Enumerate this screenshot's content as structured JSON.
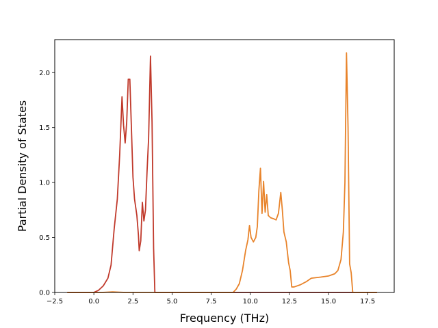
{
  "chart_data": {
    "type": "line",
    "title": "",
    "xlabel": "Frequency (THz)",
    "ylabel": "Partial Density of States",
    "xlim": [
      -2.5,
      19.2
    ],
    "ylim": [
      0,
      2.3
    ],
    "xticks": [
      -2.5,
      0.0,
      2.5,
      5.0,
      7.5,
      10.0,
      12.5,
      15.0,
      17.5
    ],
    "xtick_labels": [
      "−2.5",
      "0.0",
      "2.5",
      "5.0",
      "7.5",
      "10.0",
      "12.5",
      "15.0",
      "17.5"
    ],
    "yticks": [
      0.0,
      0.5,
      1.0,
      1.5,
      2.0
    ],
    "ytick_labels": [
      "0.0",
      "0.5",
      "1.0",
      "1.5",
      "2.0"
    ],
    "grid": false,
    "legend": "none",
    "series": [
      {
        "color": "#c0392b",
        "points": [
          [
            -1.7,
            0.0
          ],
          [
            0.0,
            0.0
          ],
          [
            0.3,
            0.02
          ],
          [
            0.6,
            0.06
          ],
          [
            0.9,
            0.13
          ],
          [
            1.1,
            0.25
          ],
          [
            1.3,
            0.58
          ],
          [
            1.5,
            0.85
          ],
          [
            1.65,
            1.25
          ],
          [
            1.8,
            1.78
          ],
          [
            1.9,
            1.52
          ],
          [
            2.0,
            1.36
          ],
          [
            2.1,
            1.55
          ],
          [
            2.2,
            1.94
          ],
          [
            2.3,
            1.94
          ],
          [
            2.4,
            1.5
          ],
          [
            2.5,
            1.05
          ],
          [
            2.6,
            0.85
          ],
          [
            2.75,
            0.7
          ],
          [
            2.85,
            0.52
          ],
          [
            2.9,
            0.38
          ],
          [
            3.0,
            0.47
          ],
          [
            3.1,
            0.82
          ],
          [
            3.2,
            0.65
          ],
          [
            3.3,
            0.75
          ],
          [
            3.4,
            1.1
          ],
          [
            3.5,
            1.4
          ],
          [
            3.62,
            2.15
          ],
          [
            3.72,
            1.55
          ],
          [
            3.82,
            0.4
          ],
          [
            3.9,
            0.0
          ],
          [
            8.9,
            0.0
          ],
          [
            10.0,
            0.0
          ],
          [
            12.0,
            0.0
          ],
          [
            16.6,
            0.0
          ],
          [
            18.1,
            0.0
          ]
        ]
      },
      {
        "color": "#e8832a",
        "points": [
          [
            -1.7,
            0.0
          ],
          [
            0.5,
            0.0
          ],
          [
            1.2,
            0.005
          ],
          [
            2.0,
            0.0
          ],
          [
            8.9,
            0.0
          ],
          [
            9.1,
            0.03
          ],
          [
            9.3,
            0.08
          ],
          [
            9.5,
            0.2
          ],
          [
            9.7,
            0.38
          ],
          [
            9.85,
            0.48
          ],
          [
            9.95,
            0.61
          ],
          [
            10.05,
            0.5
          ],
          [
            10.2,
            0.46
          ],
          [
            10.35,
            0.5
          ],
          [
            10.45,
            0.6
          ],
          [
            10.55,
            0.93
          ],
          [
            10.65,
            1.13
          ],
          [
            10.75,
            0.72
          ],
          [
            10.85,
            1.01
          ],
          [
            10.95,
            0.73
          ],
          [
            11.05,
            0.89
          ],
          [
            11.15,
            0.7
          ],
          [
            11.3,
            0.68
          ],
          [
            11.5,
            0.67
          ],
          [
            11.65,
            0.66
          ],
          [
            11.8,
            0.72
          ],
          [
            11.95,
            0.91
          ],
          [
            12.05,
            0.75
          ],
          [
            12.15,
            0.55
          ],
          [
            12.3,
            0.46
          ],
          [
            12.45,
            0.27
          ],
          [
            12.55,
            0.2
          ],
          [
            12.65,
            0.05
          ],
          [
            12.8,
            0.05
          ],
          [
            13.2,
            0.07
          ],
          [
            13.6,
            0.1
          ],
          [
            13.9,
            0.13
          ],
          [
            14.5,
            0.14
          ],
          [
            15.0,
            0.15
          ],
          [
            15.4,
            0.17
          ],
          [
            15.6,
            0.2
          ],
          [
            15.8,
            0.3
          ],
          [
            15.95,
            0.55
          ],
          [
            16.05,
            1.0
          ],
          [
            16.15,
            2.18
          ],
          [
            16.25,
            1.5
          ],
          [
            16.35,
            0.26
          ],
          [
            16.45,
            0.18
          ],
          [
            16.55,
            0.0
          ],
          [
            18.1,
            0.0
          ]
        ]
      }
    ]
  }
}
